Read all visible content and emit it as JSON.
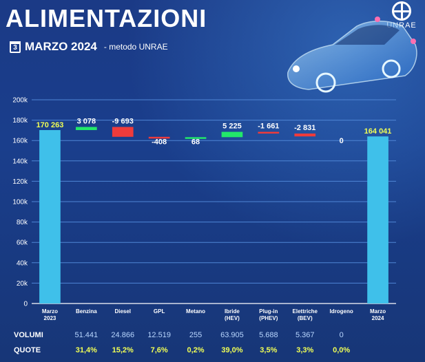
{
  "header": {
    "title": "ALIMENTAZIONI",
    "calendar_day": "3",
    "period": "MARZO 2024",
    "method": "- metodo UNRAE",
    "logo_text": "UNRAE"
  },
  "colors": {
    "total_bar": "#3fc0ea",
    "increase": "#22e86a",
    "decrease": "#ef3b3b",
    "quote_text": "#f1ff55",
    "grid": "#4f86d6"
  },
  "chart_data": {
    "type": "bar",
    "subtype": "waterfall",
    "ylim": [
      0,
      200000
    ],
    "yticks": [
      0,
      20000,
      40000,
      60000,
      80000,
      100000,
      120000,
      140000,
      160000,
      180000,
      200000
    ],
    "ytick_labels": [
      "0",
      "20k",
      "40k",
      "60k",
      "80k",
      "100k",
      "120k",
      "140k",
      "160k",
      "180k",
      "200k"
    ],
    "grid": true,
    "categories": [
      [
        "Marzo",
        "2023"
      ],
      [
        "Benzina"
      ],
      [
        "Diesel"
      ],
      [
        "GPL"
      ],
      [
        "Metano"
      ],
      [
        "Ibride",
        "(HEV)"
      ],
      [
        "Plug-in",
        "(PHEV)"
      ],
      [
        "Elettriche",
        "(BEV)"
      ],
      [
        "Idrogeno"
      ],
      [
        "Marzo",
        "2024"
      ]
    ],
    "bars": [
      {
        "kind": "total",
        "value": 170263,
        "label": "170 263"
      },
      {
        "kind": "delta",
        "value": 3078,
        "label": "3 078"
      },
      {
        "kind": "delta",
        "value": -9693,
        "label": "-9 693"
      },
      {
        "kind": "delta",
        "value": -408,
        "label": "-408"
      },
      {
        "kind": "delta",
        "value": 68,
        "label": "68"
      },
      {
        "kind": "delta",
        "value": 5225,
        "label": "5 225"
      },
      {
        "kind": "delta",
        "value": -1661,
        "label": "-1 661"
      },
      {
        "kind": "delta",
        "value": -2831,
        "label": "-2 831"
      },
      {
        "kind": "delta",
        "value": 0,
        "label": "0"
      },
      {
        "kind": "total",
        "value": 164041,
        "label": "164 041"
      }
    ]
  },
  "table": {
    "volumi_label": "VOLUMI",
    "quote_label": "QUOTE",
    "volumi": [
      "51.441",
      "24.866",
      "12.519",
      "255",
      "63.905",
      "5.688",
      "5.367",
      "0"
    ],
    "quote": [
      "31,4%",
      "15,2%",
      "7,6%",
      "0,2%",
      "39,0%",
      "3,5%",
      "3,3%",
      "0,0%"
    ]
  }
}
